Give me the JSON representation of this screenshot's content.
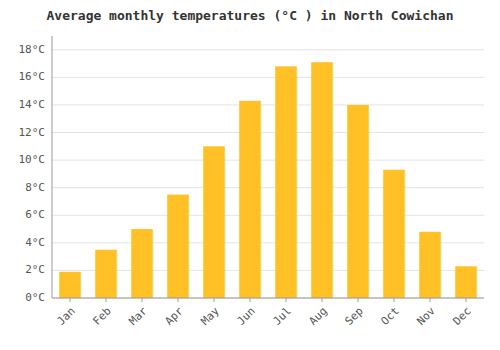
{
  "chart_data": {
    "type": "bar",
    "title": "Average monthly temperatures (°C ) in North Cowichan",
    "categories": [
      "Jan",
      "Feb",
      "Mar",
      "Apr",
      "May",
      "Jun",
      "Jul",
      "Aug",
      "Sep",
      "Oct",
      "Nov",
      "Dec"
    ],
    "values": [
      1.9,
      3.5,
      5.0,
      7.5,
      11.0,
      14.3,
      16.8,
      17.1,
      14.0,
      9.3,
      4.8,
      2.3
    ],
    "color": "#FFC125",
    "ylim": [
      0,
      19
    ],
    "yticks": [
      {
        "value": 0,
        "label": "0°C"
      },
      {
        "value": 2,
        "label": "2°C"
      },
      {
        "value": 4,
        "label": "4°C"
      },
      {
        "value": 6,
        "label": "6°C"
      },
      {
        "value": 8,
        "label": "8°C"
      },
      {
        "value": 10,
        "label": "10°C"
      },
      {
        "value": 12,
        "label": "12°C"
      },
      {
        "value": 14,
        "label": "14°C"
      },
      {
        "value": 16,
        "label": "16°C"
      },
      {
        "value": 18,
        "label": "18°C"
      }
    ],
    "grid": true
  }
}
